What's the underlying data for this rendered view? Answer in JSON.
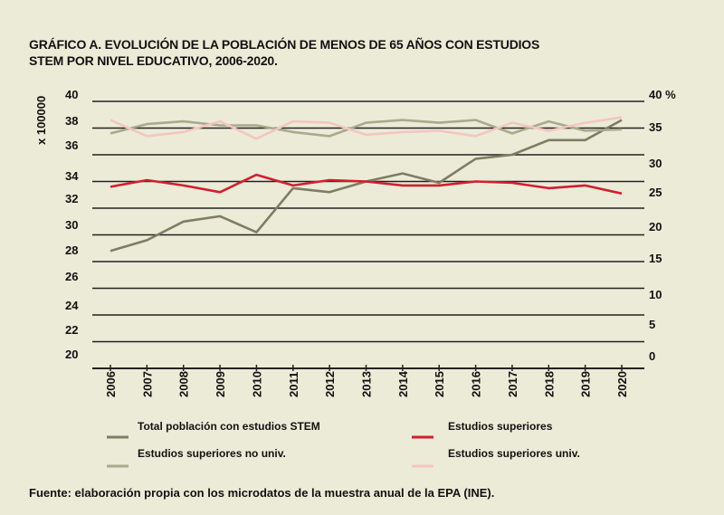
{
  "chart_data": {
    "type": "line",
    "title": "GRÁFICO A. EVOLUCIÓN DE LA POBLACIÓN DE MENOS DE 65 AÑOS CON ESTUDIOS STEM POR NIVEL EDUCATIVO, 2006-2020.",
    "title_lines": [
      "GRÁFICO A. EVOLUCIÓN DE LA POBLACIÓN DE MENOS DE 65 AÑOS CON ESTUDIOS",
      "STEM POR NIVEL EDUCATIVO, 2006-2020."
    ],
    "ylabel": "x 100000",
    "ylim": [
      20,
      40
    ],
    "y2lim": [
      0,
      40
    ],
    "y_ticks": [
      "40",
      "38",
      "36",
      "34",
      "32",
      "30",
      "28",
      "26",
      "24",
      "22",
      "20"
    ],
    "y2_ticks": [
      "40 %",
      "35",
      "30",
      "25",
      "20",
      "15",
      "10",
      "5",
      "0"
    ],
    "grid": true,
    "categories": [
      "2006",
      "2007",
      "2008",
      "2009",
      "2010",
      "2011",
      "2012",
      "2013",
      "2014",
      "2015",
      "2016",
      "2017",
      "2018",
      "2019",
      "2020"
    ],
    "series": [
      {
        "name": "Total población con estudios STEM",
        "color": "#7e7d63",
        "values": [
          28.8,
          29.6,
          31.0,
          31.4,
          30.2,
          33.5,
          33.2,
          34.0,
          34.6,
          33.9,
          35.7,
          36.0,
          37.1,
          37.1,
          38.6
        ]
      },
      {
        "name": "Estudios superiores",
        "color": "#d21f2e",
        "values": [
          33.6,
          34.1,
          33.7,
          33.2,
          34.5,
          33.7,
          34.1,
          34.0,
          33.7,
          33.7,
          34.0,
          33.9,
          33.5,
          33.7,
          33.1
        ]
      },
      {
        "name": "Estudios superiores no univ.",
        "color": "#a9aa8c",
        "values": [
          37.6,
          38.3,
          38.5,
          38.2,
          38.2,
          37.7,
          37.4,
          38.4,
          38.6,
          38.4,
          38.6,
          37.6,
          38.5,
          37.8,
          37.9
        ]
      },
      {
        "name": "Estudios superiores univ.",
        "color": "#f3c6c0",
        "values": [
          38.6,
          37.4,
          37.7,
          38.5,
          37.2,
          38.5,
          38.4,
          37.5,
          37.7,
          37.8,
          37.4,
          38.4,
          37.8,
          38.4,
          38.8
        ]
      }
    ],
    "legend_position": "bottom",
    "source": "Fuente: elaboración propia con los microdatos de la muestra anual de la EPA (INE)."
  }
}
